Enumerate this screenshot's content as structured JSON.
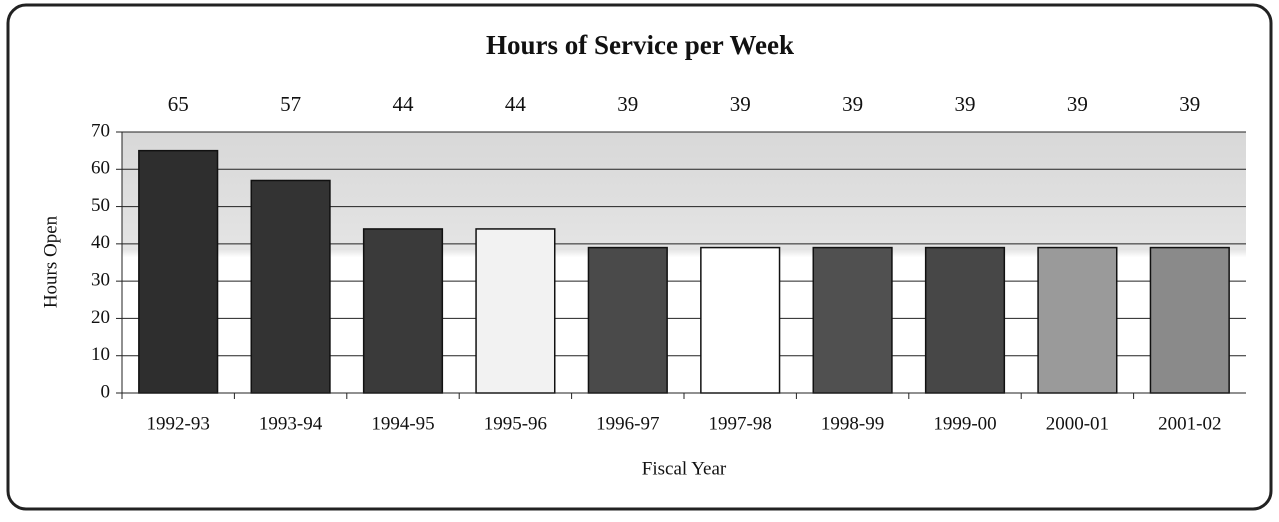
{
  "chart_data": {
    "type": "bar",
    "title": "Hours of Service per Week",
    "x_label": "Fiscal Year",
    "y_label": "Hours Open",
    "categories": [
      "1992-93",
      "1993-94",
      "1994-95",
      "1995-96",
      "1996-97",
      "1997-98",
      "1998-99",
      "1999-00",
      "2000-01",
      "2001-02"
    ],
    "values": [
      65,
      57,
      44,
      44,
      39,
      39,
      39,
      39,
      39,
      39
    ],
    "colors": [
      "#2e2e2e",
      "#333333",
      "#3a3a3a",
      "#f2f2f2",
      "#4a4a4a",
      "#ffffff",
      "#505050",
      "#474747",
      "#9a9a9a",
      "#8a8a8a"
    ],
    "ylim": [
      0,
      70
    ],
    "yticks": [
      0,
      10,
      20,
      30,
      40,
      50,
      60,
      70
    ],
    "grid": true
  }
}
